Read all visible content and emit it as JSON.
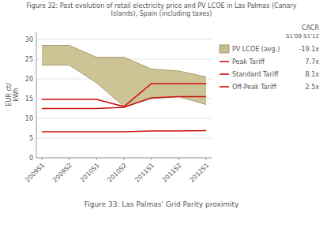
{
  "chart_data": {
    "type": "line",
    "title": "Figure 32: Past evolution of retail electricity price and PV LCOE in Las Palmas (Canary\nIslands), Spain (including taxes)",
    "y_label": "EUR ct/\nkWh",
    "categories": [
      "2009S1",
      "2009S2",
      "2010S1",
      "2010S2",
      "2011S1",
      "2011S2",
      "2012S1"
    ],
    "ylim": [
      0,
      32
    ],
    "yticks": [
      0,
      5,
      10,
      15,
      20,
      25,
      30
    ],
    "grid": true,
    "legend": "right",
    "legend_header": [
      "CACR",
      "S1'09-S1'12"
    ],
    "series": [
      {
        "name": "PV LCOE (avg.)",
        "type": "area",
        "color": "#c8be8a",
        "upper": [
          28.5,
          28.5,
          25.5,
          25.5,
          22.5,
          22.0,
          20.5
        ],
        "lower": [
          23.5,
          23.5,
          19.0,
          13.0,
          15.0,
          15.5,
          13.5
        ],
        "cacr": "-19.1x"
      },
      {
        "name": "Peak Tariff",
        "color": "#cc1111",
        "values": [
          14.8,
          14.8,
          14.8,
          13.0,
          18.8,
          18.8,
          18.8
        ],
        "cacr": "7.7x"
      },
      {
        "name": "Standard Tariff",
        "color": "#cc1111",
        "values": [
          12.5,
          12.5,
          12.5,
          12.8,
          15.2,
          15.5,
          15.5
        ],
        "cacr": "8.1x"
      },
      {
        "name": "Off-Peak Tariff",
        "color": "#cc1111",
        "values": [
          6.6,
          6.6,
          6.6,
          6.6,
          6.8,
          6.8,
          6.9
        ],
        "cacr": "2.5x"
      }
    ],
    "annotations": [
      "Figure 33: Las Palmas' Grid Parity proximity"
    ]
  }
}
